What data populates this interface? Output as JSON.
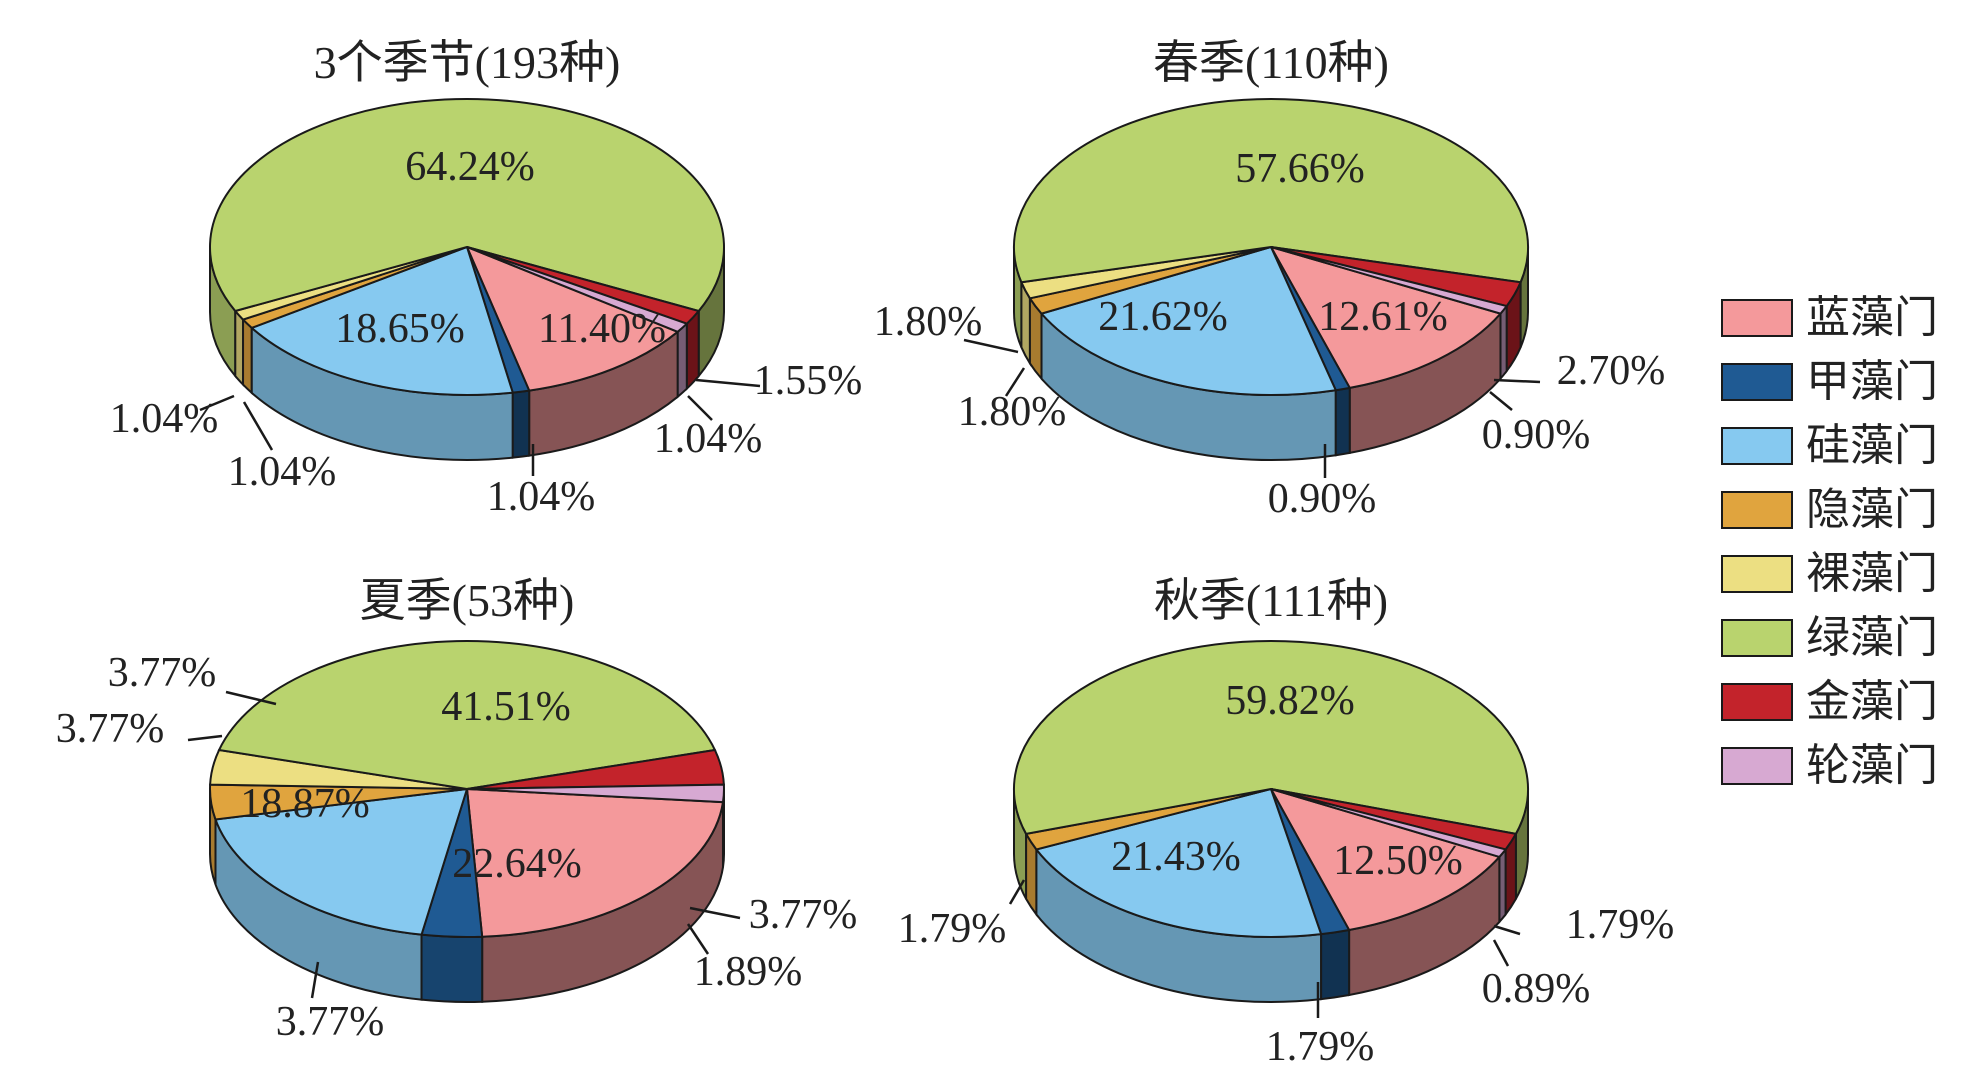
{
  "legend": [
    {
      "name": "蓝藻门",
      "color": "#f4999b"
    },
    {
      "name": "甲藻门",
      "color": "#1f5a93"
    },
    {
      "name": "硅藻门",
      "color": "#86c9f0"
    },
    {
      "name": "隐藻门",
      "color": "#e0a43e"
    },
    {
      "name": "裸藻门",
      "color": "#ecdf82"
    },
    {
      "name": "绿藻门",
      "color": "#b9d36e"
    },
    {
      "name": "金藻门",
      "color": "#c3232b"
    },
    {
      "name": "轮藻门",
      "color": "#d7a9d2"
    }
  ],
  "chart_data": [
    {
      "type": "pie",
      "title": "3个季节(193种)",
      "categories": [
        "蓝藻门",
        "甲藻门",
        "硅藻门",
        "隐藻门",
        "裸藻门",
        "绿藻门",
        "金藻门",
        "轮藻门"
      ],
      "values": [
        11.4,
        1.04,
        18.65,
        1.04,
        1.04,
        64.24,
        1.55,
        1.04
      ],
      "labels": [
        "11.40%",
        "1.04%",
        "18.65%",
        "1.04%",
        "1.04%",
        "64.24%",
        "1.55%",
        "1.04%"
      ]
    },
    {
      "type": "pie",
      "title": "春季(110种)",
      "categories": [
        "蓝藻门",
        "甲藻门",
        "硅藻门",
        "隐藻门",
        "裸藻门",
        "绿藻门",
        "金藻门",
        "轮藻门"
      ],
      "values": [
        12.61,
        0.9,
        21.62,
        1.8,
        1.8,
        57.66,
        2.7,
        0.9
      ],
      "labels": [
        "12.61%",
        "0.90%",
        "21.62%",
        "1.80%",
        "1.80%",
        "57.66%",
        "2.70%",
        "0.90%"
      ]
    },
    {
      "type": "pie",
      "title": "夏季(53种)",
      "categories": [
        "蓝藻门",
        "甲藻门",
        "硅藻门",
        "隐藻门",
        "裸藻门",
        "绿藻门",
        "金藻门",
        "轮藻门"
      ],
      "values": [
        22.64,
        3.77,
        18.87,
        3.77,
        3.77,
        41.51,
        3.77,
        1.89
      ],
      "labels": [
        "22.64%",
        "3.77%",
        "18.87%",
        "3.77%",
        "3.77%",
        "41.51%",
        "3.77%",
        "1.89%"
      ]
    },
    {
      "type": "pie",
      "title": "秋季(111种)",
      "categories": [
        "蓝藻门",
        "甲藻门",
        "硅藻门",
        "隐藻门",
        "绿藻门",
        "金藻门",
        "轮藻门"
      ],
      "values": [
        12.5,
        1.79,
        21.43,
        1.79,
        59.82,
        1.79,
        0.89
      ],
      "labels": [
        "12.50%",
        "1.79%",
        "21.43%",
        "1.79%",
        "59.82%",
        "1.79%",
        "0.89%"
      ]
    }
  ]
}
